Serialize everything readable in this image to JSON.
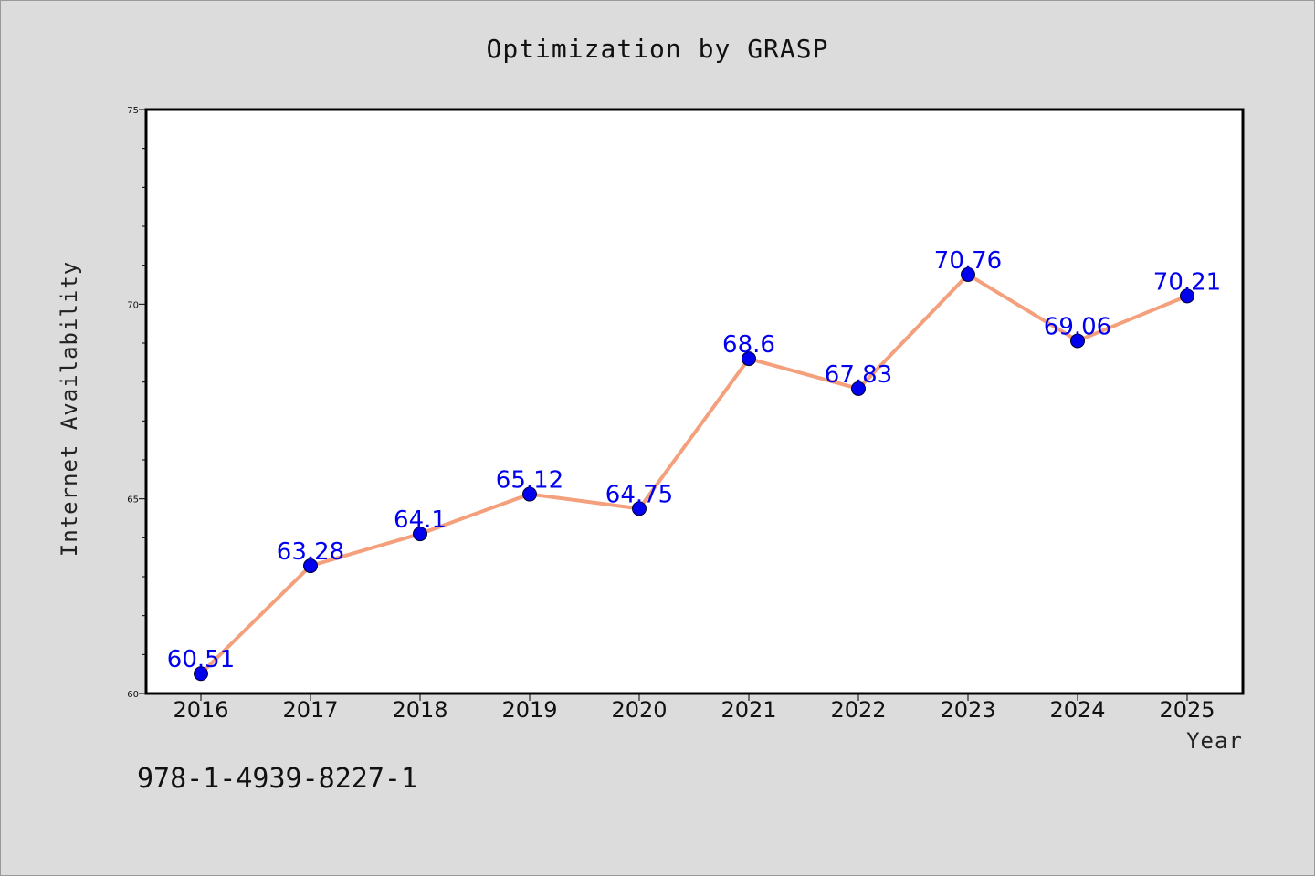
{
  "chart_data": {
    "type": "line",
    "title": "Optimization by GRASP",
    "xlabel": "Year",
    "ylabel": "Internet Availability",
    "categories": [
      "2016",
      "2017",
      "2018",
      "2019",
      "2020",
      "2021",
      "2022",
      "2023",
      "2024",
      "2025"
    ],
    "series": [
      {
        "values": [
          60.51,
          63.28,
          64.1,
          65.12,
          64.75,
          68.6,
          67.83,
          70.76,
          69.06,
          70.21
        ],
        "data_labels": [
          "60.51",
          "63.28",
          "64.1",
          "65.12",
          "64.75",
          "68.6",
          "67.83",
          "70.76",
          "69.06",
          "70.21"
        ]
      }
    ],
    "ylim": [
      60,
      75
    ],
    "yticks": [
      "60",
      "65",
      "70",
      "75"
    ],
    "grid": false,
    "line_color": "#f4a07c",
    "marker_color": "#0000ee",
    "label_color": "#0000ee"
  },
  "footer": {
    "isbn": "978-1-4939-8227-1"
  }
}
